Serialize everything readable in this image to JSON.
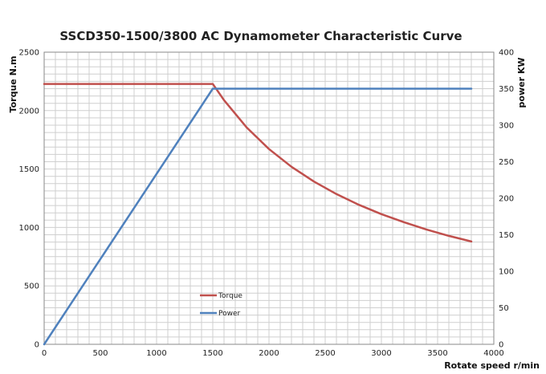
{
  "chart_data": {
    "type": "line",
    "title": "SSCD350-1500/3800 AC Dynamometer Characteristic Curve",
    "xlabel": "Rotate speed r/min",
    "ylabel": "Torque N.m",
    "y2label": "power KW",
    "xlim": [
      0,
      4000
    ],
    "ylim": [
      0,
      2500
    ],
    "y2lim": [
      0,
      400
    ],
    "x_ticks": [
      "0",
      "500",
      "1000",
      "1500",
      "2000",
      "2500",
      "3000",
      "3500",
      "4000"
    ],
    "y_ticks": [
      "0",
      "500",
      "1000",
      "1500",
      "2000",
      "2500"
    ],
    "y2_ticks": [
      "0",
      "50",
      "100",
      "150",
      "200",
      "250",
      "300",
      "350",
      "400"
    ],
    "grid": true,
    "legend": "center-left",
    "series": [
      {
        "name": "Torque",
        "axis": "left",
        "color": "#c0504d",
        "points": [
          [
            0,
            2228
          ],
          [
            1500,
            2228
          ],
          [
            1600,
            2089
          ],
          [
            1800,
            1857
          ],
          [
            2000,
            1671
          ],
          [
            2200,
            1519
          ],
          [
            2400,
            1393
          ],
          [
            2600,
            1286
          ],
          [
            2800,
            1194
          ],
          [
            3000,
            1114
          ],
          [
            3200,
            1045
          ],
          [
            3400,
            983
          ],
          [
            3600,
            928
          ],
          [
            3800,
            880
          ]
        ]
      },
      {
        "name": "Power",
        "axis": "right",
        "color": "#4f81bd",
        "points": [
          [
            0,
            0
          ],
          [
            1500,
            350
          ],
          [
            3800,
            350
          ]
        ]
      }
    ]
  }
}
